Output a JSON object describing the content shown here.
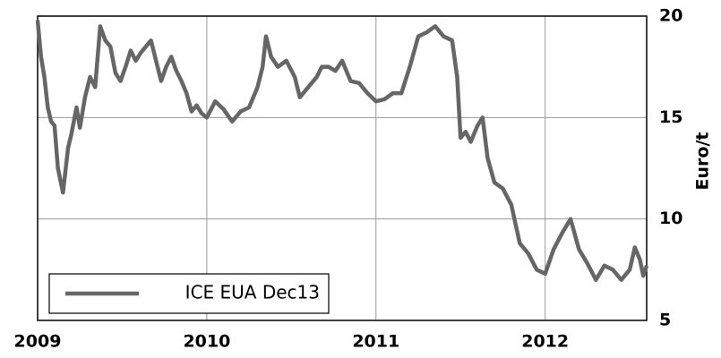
{
  "chart_data": {
    "type": "line",
    "y_label": "Euro/t",
    "x": [
      2009.0,
      2009.02,
      2009.04,
      2009.06,
      2009.08,
      2009.1,
      2009.12,
      2009.15,
      2009.18,
      2009.2,
      2009.23,
      2009.25,
      2009.28,
      2009.31,
      2009.34,
      2009.37,
      2009.4,
      2009.43,
      2009.46,
      2009.49,
      2009.52,
      2009.55,
      2009.58,
      2009.61,
      2009.64,
      2009.67,
      2009.7,
      2009.73,
      2009.76,
      2009.79,
      2009.82,
      2009.85,
      2009.88,
      2009.91,
      2009.94,
      2009.97,
      2010.0,
      2010.05,
      2010.1,
      2010.15,
      2010.2,
      2010.25,
      2010.3,
      2010.33,
      2010.35,
      2010.38,
      2010.42,
      2010.47,
      2010.52,
      2010.55,
      2010.6,
      2010.65,
      2010.68,
      2010.72,
      2010.76,
      2010.8,
      2010.85,
      2010.9,
      2010.95,
      2011.0,
      2011.05,
      2011.1,
      2011.15,
      2011.2,
      2011.25,
      2011.3,
      2011.35,
      2011.4,
      2011.45,
      2011.48,
      2011.5,
      2011.53,
      2011.56,
      2011.6,
      2011.63,
      2011.66,
      2011.7,
      2011.75,
      2011.8,
      2011.85,
      2011.9,
      2011.95,
      2012.0,
      2012.05,
      2012.1,
      2012.15,
      2012.2,
      2012.25,
      2012.3,
      2012.35,
      2012.4,
      2012.45,
      2012.5,
      2012.53,
      2012.56,
      2012.58,
      2012.6
    ],
    "series": [
      {
        "name": "ICE EUA Dec13",
        "color": "#666666",
        "values": [
          19.8,
          18,
          17,
          15.5,
          14.8,
          14.6,
          12.5,
          11.3,
          13.5,
          14.2,
          15.5,
          14.5,
          16,
          17,
          16.5,
          19.5,
          18.8,
          18.5,
          17.2,
          16.8,
          17.5,
          18.3,
          17.8,
          18.2,
          18.5,
          18.8,
          17.8,
          16.8,
          17.5,
          18,
          17.3,
          16.8,
          16.2,
          15.3,
          15.6,
          15.2,
          15,
          15.8,
          15.4,
          14.8,
          15.3,
          15.5,
          16.5,
          17.5,
          19,
          18,
          17.5,
          17.8,
          17,
          16,
          16.5,
          17,
          17.5,
          17.5,
          17.3,
          17.8,
          16.8,
          16.7,
          16.2,
          15.8,
          15.9,
          16.2,
          16.2,
          17.5,
          19,
          19.2,
          19.5,
          19,
          18.8,
          17,
          14,
          14.3,
          13.8,
          14.6,
          15,
          13,
          11.8,
          11.5,
          10.7,
          8.8,
          8.3,
          7.5,
          7.3,
          8.5,
          9.3,
          10,
          8.5,
          7.8,
          7,
          7.7,
          7.5,
          7,
          7.5,
          8.6,
          8,
          7.2,
          7.7
        ]
      }
    ],
    "xlim": [
      2009,
      2012.6
    ],
    "xticks": [
      2009,
      2010,
      2011,
      2012
    ],
    "ylim": [
      5,
      20
    ],
    "yticks": [
      5,
      10,
      15,
      20
    ],
    "grid": true,
    "legend": "lower left"
  }
}
